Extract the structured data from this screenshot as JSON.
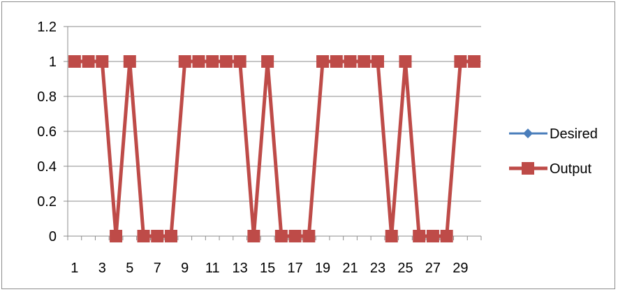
{
  "chart_data": {
    "type": "line",
    "title": "",
    "xlabel": "",
    "ylabel": "",
    "categories": [
      1,
      2,
      3,
      4,
      5,
      6,
      7,
      8,
      9,
      10,
      11,
      12,
      13,
      14,
      15,
      16,
      17,
      18,
      19,
      20,
      21,
      22,
      23,
      24,
      25,
      26,
      27,
      28,
      29,
      30
    ],
    "x_tick_labels": [
      "1",
      "3",
      "5",
      "7",
      "9",
      "11",
      "13",
      "15",
      "17",
      "19",
      "21",
      "23",
      "25",
      "27",
      "29"
    ],
    "y_tick_labels": [
      "0",
      "0.2",
      "0.4",
      "0.6",
      "0.8",
      "1",
      "1.2"
    ],
    "ylim": [
      0,
      1.2
    ],
    "y_ticks": [
      0,
      0.2,
      0.4,
      0.6,
      0.8,
      1,
      1.2
    ],
    "grid": true,
    "legend_position": "right",
    "series": [
      {
        "name": "Desired",
        "color": "#4a7ebb",
        "marker": "diamond",
        "values": [
          1,
          1,
          1,
          0,
          1,
          0,
          0,
          0,
          1,
          1,
          1,
          1,
          1,
          0,
          1,
          0,
          0,
          0,
          1,
          1,
          1,
          1,
          1,
          0,
          1,
          0,
          0,
          0,
          1,
          1
        ]
      },
      {
        "name": "Output",
        "color": "#be4b48",
        "marker": "square",
        "values": [
          1,
          1,
          1,
          0,
          1,
          0,
          0,
          0,
          1,
          1,
          1,
          1,
          1,
          0,
          1,
          0,
          0,
          0,
          1,
          1,
          1,
          1,
          1,
          0,
          1,
          0,
          0,
          0,
          1,
          1
        ]
      }
    ]
  }
}
